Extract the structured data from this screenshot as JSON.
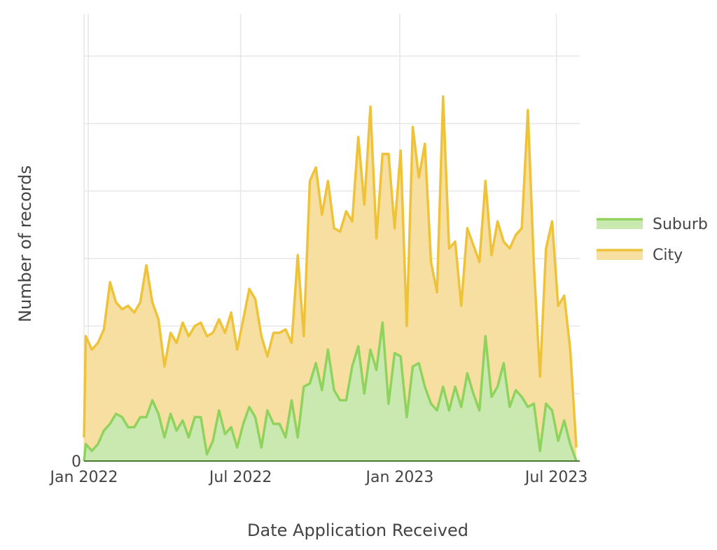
{
  "chart_data": {
    "type": "area",
    "stacked": true,
    "xlabel": "Date Application Received",
    "ylabel": "Number of records",
    "x_start": "2022-01-01",
    "x_end": "2023-07-28",
    "xticks": [
      {
        "date": "2022-01-01",
        "label": "Jan 2022"
      },
      {
        "date": "2022-07-01",
        "label": "Jul 2022"
      },
      {
        "date": "2023-01-01",
        "label": "Jan 2023"
      },
      {
        "date": "2023-07-01",
        "label": "Jul 2023"
      }
    ],
    "ylim": [
      0,
      60
    ],
    "yticks": [
      0,
      10,
      20,
      30,
      40,
      50,
      60
    ],
    "ytick_labels_visible": [
      "0"
    ],
    "grid": true,
    "legend_position": "right",
    "legend": [
      {
        "name": "Suburb",
        "color": "#8fd35e",
        "fill": "#c9e9b1"
      },
      {
        "name": "City",
        "color": "#eec33a",
        "fill": "#f6dfa0"
      }
    ],
    "x": [
      "2022-01-01",
      "2022-01-03",
      "2022-01-10",
      "2022-01-17",
      "2022-01-24",
      "2022-01-31",
      "2022-02-07",
      "2022-02-14",
      "2022-02-21",
      "2022-02-28",
      "2022-03-07",
      "2022-03-14",
      "2022-03-21",
      "2022-03-28",
      "2022-04-04",
      "2022-04-11",
      "2022-04-18",
      "2022-04-25",
      "2022-05-02",
      "2022-05-09",
      "2022-05-16",
      "2022-05-23",
      "2022-05-30",
      "2022-06-06",
      "2022-06-13",
      "2022-06-20",
      "2022-06-27",
      "2022-07-04",
      "2022-07-11",
      "2022-07-18",
      "2022-07-25",
      "2022-08-01",
      "2022-08-08",
      "2022-08-15",
      "2022-08-22",
      "2022-08-29",
      "2022-09-05",
      "2022-09-12",
      "2022-09-19",
      "2022-09-26",
      "2022-10-03",
      "2022-10-10",
      "2022-10-17",
      "2022-10-24",
      "2022-10-31",
      "2022-11-07",
      "2022-11-14",
      "2022-11-21",
      "2022-11-28",
      "2022-12-05",
      "2022-12-12",
      "2022-12-19",
      "2022-12-26",
      "2023-01-02",
      "2023-01-09",
      "2023-01-16",
      "2023-01-23",
      "2023-01-30",
      "2023-02-06",
      "2023-02-13",
      "2023-02-20",
      "2023-02-27",
      "2023-03-06",
      "2023-03-13",
      "2023-03-20",
      "2023-03-27",
      "2023-04-03",
      "2023-04-10",
      "2023-04-17",
      "2023-04-24",
      "2023-05-01",
      "2023-05-08",
      "2023-05-15",
      "2023-05-22",
      "2023-05-29",
      "2023-06-05",
      "2023-06-12",
      "2023-06-19",
      "2023-06-26",
      "2023-07-03",
      "2023-07-10",
      "2023-07-17",
      "2023-07-24"
    ],
    "series": [
      {
        "name": "Suburb",
        "values": [
          0,
          2.5,
          1.5,
          2.5,
          4.5,
          5.5,
          7,
          6.5,
          5,
          5,
          6.5,
          6.5,
          9,
          7,
          3.5,
          7,
          4.5,
          6,
          3.5,
          6.5,
          6.5,
          1,
          3,
          7.5,
          4,
          5,
          2,
          5.5,
          8,
          6.5,
          2,
          7.5,
          5.5,
          5.5,
          3.5,
          9,
          3.5,
          11,
          11.5,
          14.5,
          10.5,
          16.5,
          10.5,
          9,
          9,
          14,
          17,
          10,
          16.5,
          13.5,
          20.5,
          8.5,
          16,
          15.5,
          6.5,
          14,
          14.5,
          11,
          8.5,
          7.5,
          11,
          7.5,
          11,
          8,
          13,
          10,
          7.5,
          18.5,
          9.5,
          11,
          14.5,
          8,
          10.5,
          9.5,
          8,
          8.5,
          1.5,
          8.5,
          7.5,
          3,
          6,
          2.5,
          0
        ]
      },
      {
        "name": "City",
        "values": [
          3.5,
          16,
          15,
          15,
          15,
          21,
          16.5,
          16,
          18,
          17,
          17,
          22.5,
          14.5,
          14,
          10.5,
          12,
          13,
          14.5,
          15,
          13.5,
          14,
          17.5,
          16,
          13.5,
          15,
          17,
          14.5,
          15.5,
          17.5,
          17.5,
          16.5,
          8,
          13.5,
          13.5,
          16,
          8.5,
          27,
          7.5,
          30,
          29,
          26,
          25,
          24,
          25,
          28,
          21.5,
          31,
          28,
          36,
          19.5,
          25,
          37,
          18.5,
          30.5,
          13.5,
          35.5,
          27.5,
          36,
          21,
          17.5,
          43,
          24,
          21.5,
          15,
          21.5,
          22,
          22,
          23,
          21,
          24.5,
          18,
          23.5,
          23,
          25,
          44,
          20.5,
          11,
          23,
          28,
          20,
          18.5,
          14,
          2
        ]
      }
    ]
  }
}
